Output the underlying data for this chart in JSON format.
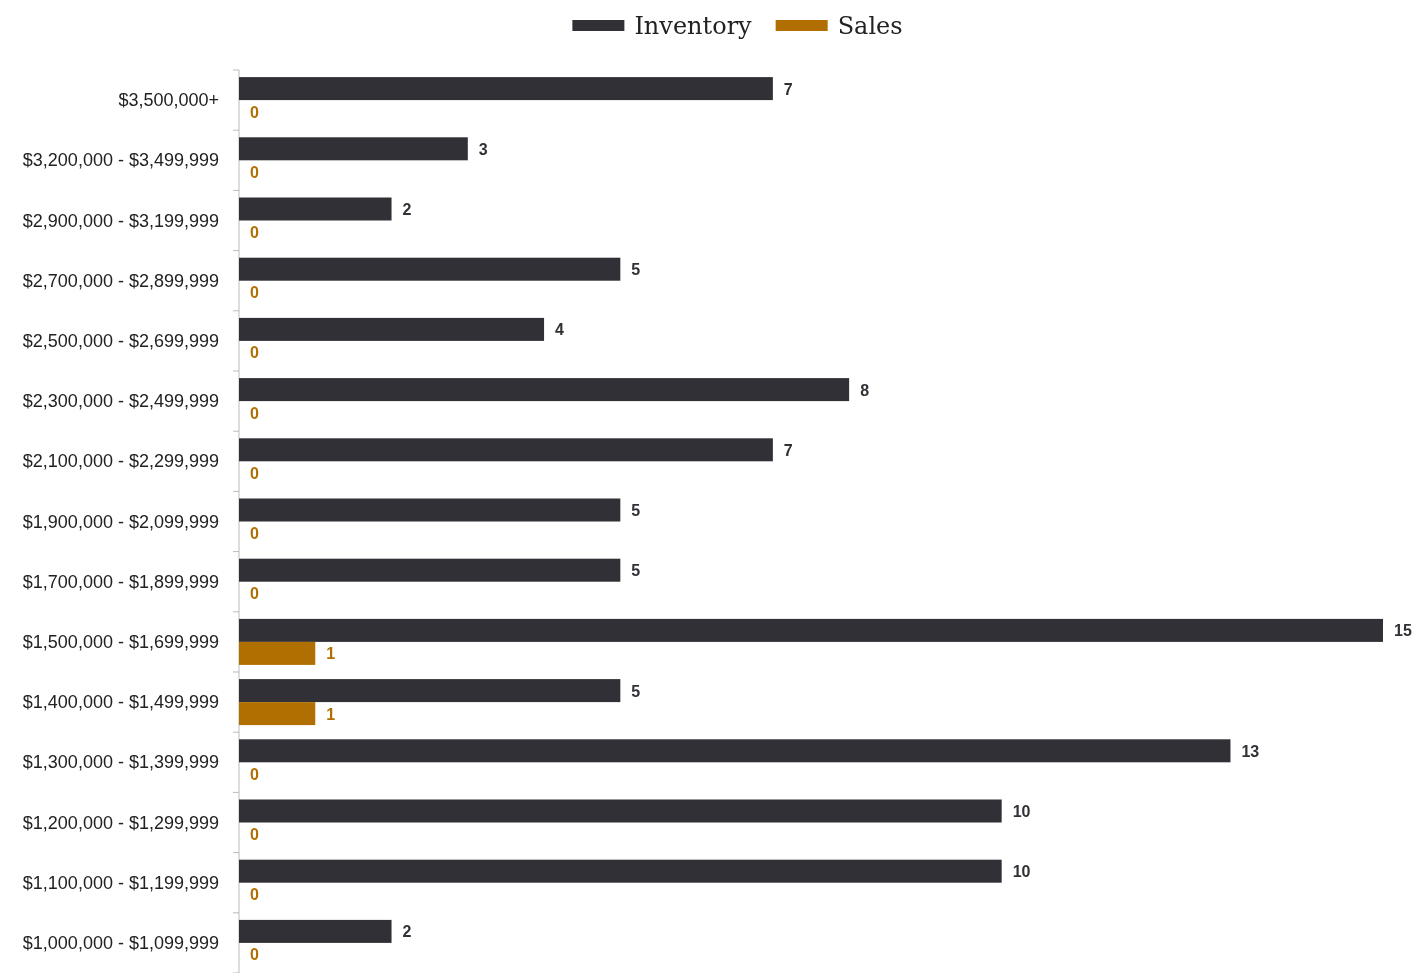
{
  "chart_data": {
    "type": "bar",
    "orientation": "horizontal",
    "categories": [
      "$3,500,000+",
      "$3,200,000 - $3,499,999",
      "$2,900,000 - $3,199,999",
      "$2,700,000 - $2,899,999",
      "$2,500,000 - $2,699,999",
      "$2,300,000 - $2,499,999",
      "$2,100,000 - $2,299,999",
      "$1,900,000 - $2,099,999",
      "$1,700,000 - $1,899,999",
      "$1,500,000 - $1,699,999",
      "$1,400,000 - $1,499,999",
      "$1,300,000 - $1,399,999",
      "$1,200,000 - $1,299,999",
      "$1,100,000 - $1,199,999",
      "$1,000,000 - $1,099,999"
    ],
    "series": [
      {
        "name": "Inventory",
        "color": "#303036",
        "values": [
          7,
          3,
          2,
          5,
          4,
          8,
          7,
          5,
          5,
          15,
          5,
          13,
          10,
          10,
          2
        ]
      },
      {
        "name": "Sales",
        "color": "#b06f00",
        "values": [
          0,
          0,
          0,
          0,
          0,
          0,
          0,
          0,
          0,
          1,
          1,
          0,
          0,
          0,
          0
        ]
      }
    ],
    "data_labels": true,
    "legend": "top",
    "tick_labels": "y"
  }
}
